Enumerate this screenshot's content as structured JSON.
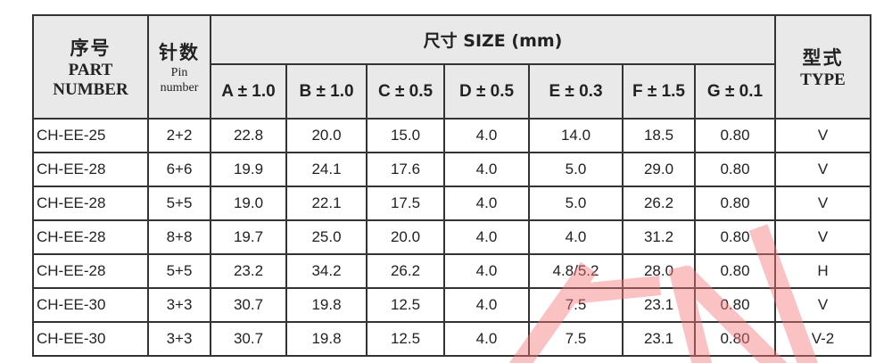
{
  "header": {
    "part_cn": "序号",
    "part_en": "PART NUMBER",
    "pin_cn": "针数",
    "pin_en": "Pin number",
    "size_title": "尺寸 SIZE (mm)",
    "type_cn": "型式",
    "type_en": "TYPE",
    "dims": [
      "A ± 1.0",
      "B ± 1.0",
      "C ± 0.5",
      "D ± 0.5",
      "E ± 0.3",
      "F ± 1.5",
      "G ± 0.1"
    ]
  },
  "rows": [
    [
      "CH-EE-25",
      "2+2",
      "22.8",
      "20.0",
      "15.0",
      "4.0",
      "14.0",
      "18.5",
      "0.80",
      "V"
    ],
    [
      "CH-EE-28",
      "6+6",
      "19.9",
      "24.1",
      "17.6",
      "4.0",
      "5.0",
      "29.0",
      "0.80",
      "V"
    ],
    [
      "CH-EE-28",
      "5+5",
      "19.0",
      "22.1",
      "17.5",
      "4.0",
      "5.0",
      "26.2",
      "0.80",
      "V"
    ],
    [
      "CH-EE-28",
      "8+8",
      "19.7",
      "25.0",
      "20.0",
      "4.0",
      "4.0",
      "31.2",
      "0.80",
      "V"
    ],
    [
      "CH-EE-28",
      "5+5",
      "23.2",
      "34.2",
      "26.2",
      "4.0",
      "4.8/5.2",
      "28.0",
      "0.80",
      "H"
    ],
    [
      "CH-EE-30",
      "3+3",
      "30.7",
      "19.8",
      "12.5",
      "4.0",
      "7.5",
      "23.1",
      "0.80",
      "V"
    ],
    [
      "CH-EE-30",
      "3+3",
      "30.7",
      "19.8",
      "12.5",
      "4.0",
      "7.5",
      "23.1",
      "0.80",
      "V-2"
    ]
  ],
  "watermark": {
    "color": "#f47a7a"
  }
}
